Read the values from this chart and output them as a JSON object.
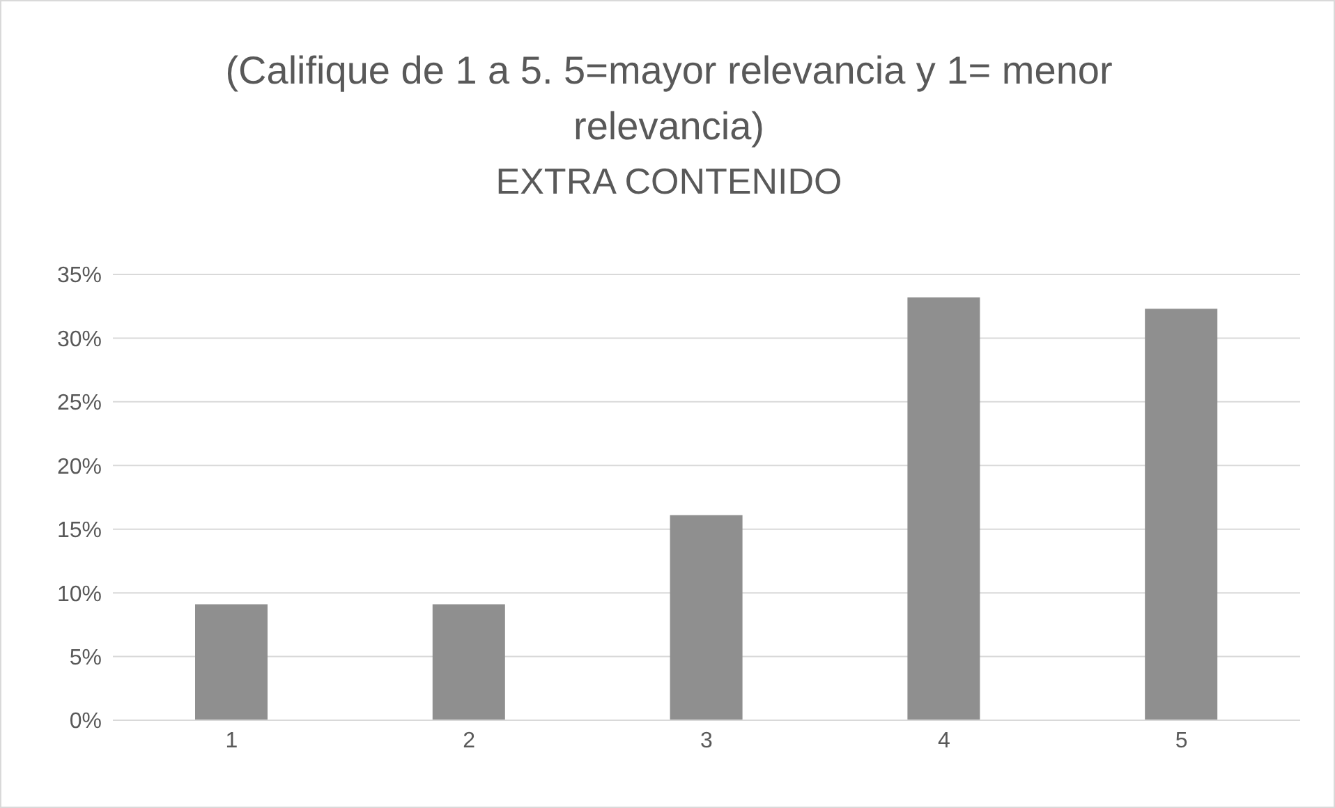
{
  "chart_data": {
    "type": "bar",
    "title": "(Califique de 1 a 5.    5=mayor relevancia y 1= menor relevancia)",
    "subtitle": "EXTRA CONTENIDO",
    "categories": [
      "1",
      "2",
      "3",
      "4",
      "5"
    ],
    "values": [
      9.1,
      9.1,
      16.1,
      33.2,
      32.3
    ],
    "color": "#8f8f8f",
    "ylim": [
      0,
      35
    ],
    "yticks": [
      {
        "value": 0,
        "label": "0%"
      },
      {
        "value": 5,
        "label": "5%"
      },
      {
        "value": 10,
        "label": "10%"
      },
      {
        "value": 15,
        "label": "15%"
      },
      {
        "value": 20,
        "label": "20%"
      },
      {
        "value": 25,
        "label": "25%"
      },
      {
        "value": 30,
        "label": "30%"
      },
      {
        "value": 35,
        "label": "35%"
      }
    ],
    "grid": "y"
  }
}
